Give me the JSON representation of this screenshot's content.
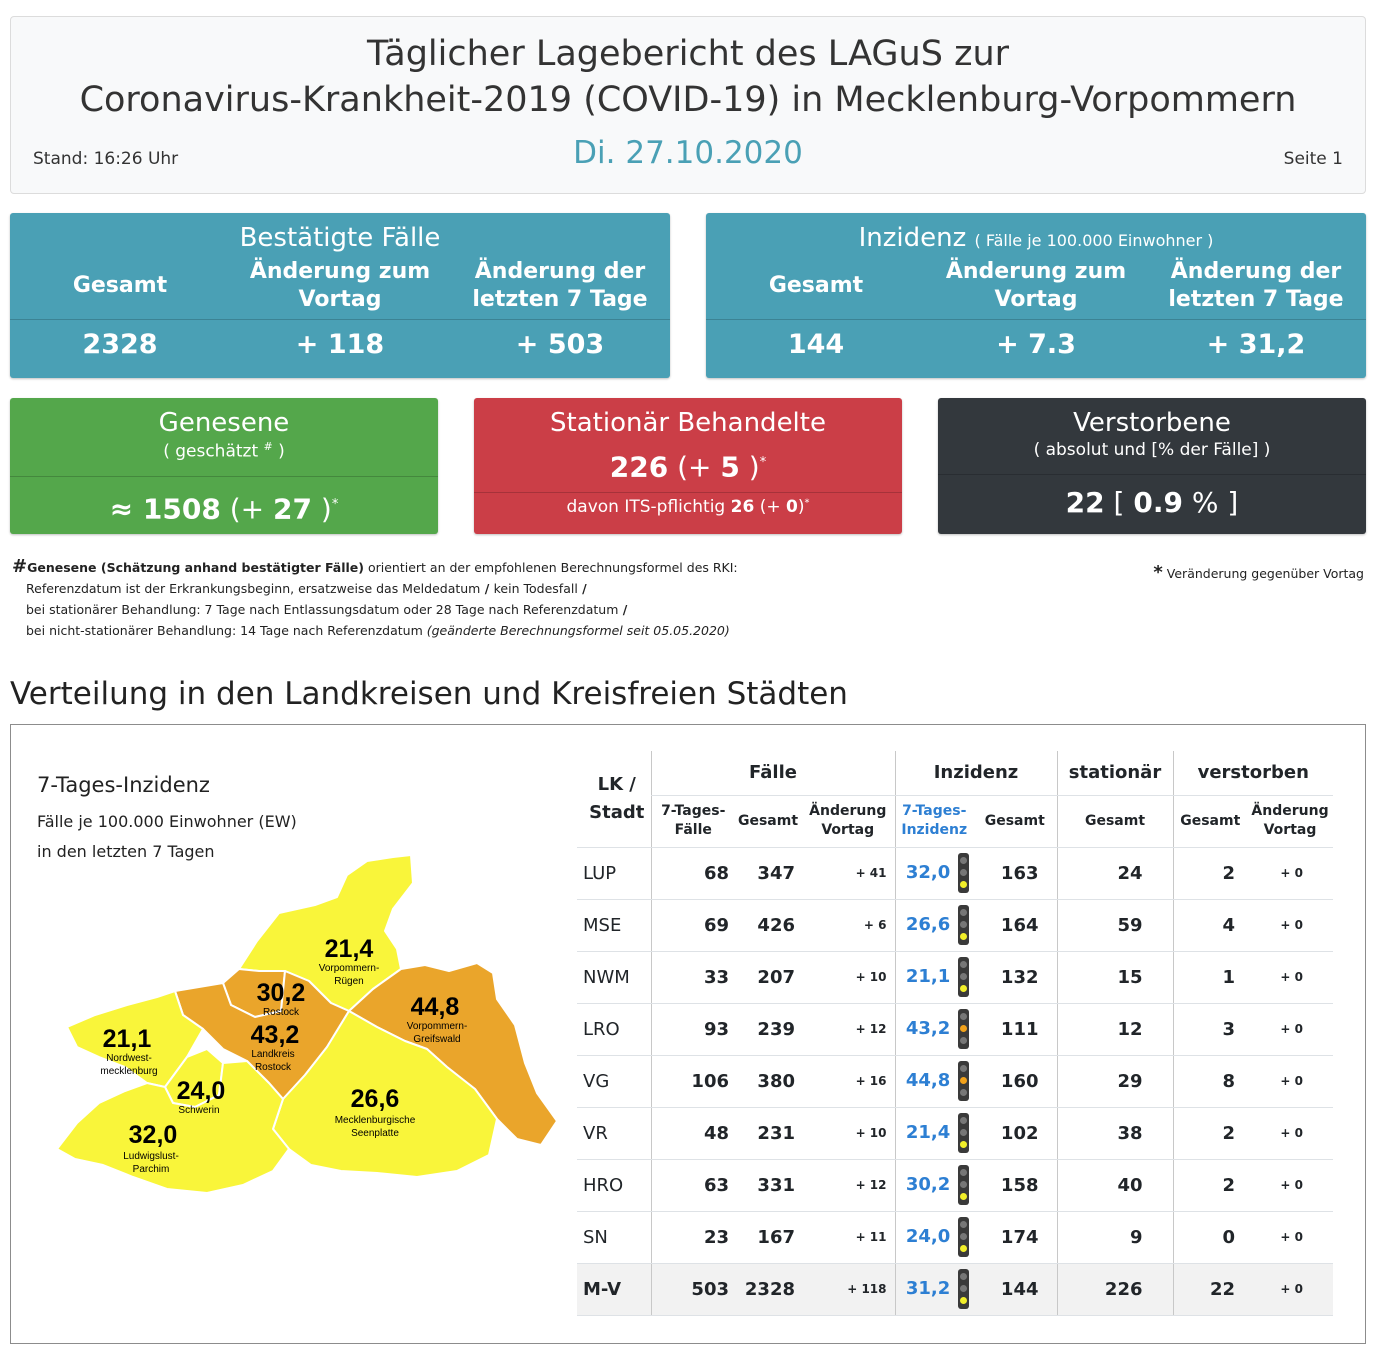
{
  "header": {
    "title_line1": "Täglicher Lagebericht des LAGuS zur",
    "title_line2": "Coronavirus-Krankheit-2019 (COVID-19) in Mecklenburg-Vorpommern",
    "date": "Di. 27.10.2020",
    "stand": "Stand: 16:26 Uhr",
    "seite": "Seite 1"
  },
  "confirmed": {
    "title": "Bestätigte Fälle",
    "col1": "Gesamt",
    "col2": "Änderung zum Vortag",
    "col3": "Änderung der letzten 7 Tage",
    "total": "2328",
    "change_day": "+ 118",
    "change_7d": "+ 503"
  },
  "incidence": {
    "title": "Inzidenz",
    "subtitle": "( Fälle je 100.000 Einwohner )",
    "col1": "Gesamt",
    "col2": "Änderung zum Vortag",
    "col3": "Änderung der letzten 7 Tage",
    "total": "144",
    "change_day": "+ 7.3",
    "change_7d": "+ 31,2"
  },
  "recovered": {
    "title": "Genesene",
    "subtitle_a": "( geschätzt ",
    "subtitle_mark": "#",
    "subtitle_b": " )",
    "approx": "≈ ",
    "value": "1508",
    "change_open": " (+ ",
    "change": "27",
    "change_close": " )",
    "star": "*"
  },
  "hospital": {
    "title": "Stationär Behandelte",
    "value": "226",
    "change_open": " (+ ",
    "change": "5",
    "change_close": " )",
    "star": "*",
    "its_label": "davon ITS-pflichtig ",
    "its_value": "26",
    "its_change_open": " (+ ",
    "its_change": "0",
    "its_change_close": ")",
    "its_star": "*"
  },
  "deaths": {
    "title": "Verstorbene",
    "subtitle": "( absolut und [% der Fälle] )",
    "value": "22",
    "pct_open": " [ ",
    "pct": "0.9",
    "pct_close": " % ]"
  },
  "notes": {
    "hash": "#",
    "bold_lead": "Genesene (Schätzung anhand bestätigter Fälle)",
    "line1_rest": " orientiert an der empfohlenen Berechnungsformel des RKI:",
    "line2": "Referenzdatum ist der Erkrankungsbeginn, ersatzweise das Meldedatum",
    "line2_tail": " kein Todesfall",
    "line3": "bei stationärer Behandlung: 7 Tage nach Entlassungsdatum oder 28 Tage nach Referenzdatum",
    "line4": "bei nicht-stationärer Behandlung: 14 Tage nach Referenzdatum ",
    "line4_italic": "(geänderte Berechnungsformel seit 05.05.2020)",
    "slash": " / ",
    "star_mark": "*",
    "star_text": " Veränderung gegenüber Vortag"
  },
  "section_title": "Verteilung in den Landkreisen und Kreisfreien Städten",
  "map": {
    "title": "7-Tages-Inzidenz",
    "sub1": "Fälle je 100.000 Einwohner (EW)",
    "sub2": "in den letzten 7 Tagen",
    "colors": {
      "yellow": "#f9f53a",
      "orange": "#eaa52b",
      "border": "#ffffff"
    },
    "regions": [
      {
        "value": "21,4",
        "name1": "Vorpommern-",
        "name2": "Rügen"
      },
      {
        "value": "30,2",
        "name1": "Rostock",
        "name2": ""
      },
      {
        "value": "44,8",
        "name1": "Vorpommern-",
        "name2": "Greifswald"
      },
      {
        "value": "43,2",
        "name1": "Landkreis",
        "name2": "Rostock"
      },
      {
        "value": "21,1",
        "name1": "Nordwest-",
        "name2": "mecklenburg"
      },
      {
        "value": "24,0",
        "name1": "Schwerin",
        "name2": ""
      },
      {
        "value": "26,6",
        "name1": "Mecklenburgische",
        "name2": "Seenplatte"
      },
      {
        "value": "32,0",
        "name1": "Ludwigslust-",
        "name2": "Parchim"
      }
    ]
  },
  "table": {
    "headers": {
      "lk": "LK /",
      "lk2": "Stadt",
      "faelle": "Fälle",
      "inzidenz": "Inzidenz",
      "stationaer": "stationär",
      "verstorben": "verstorben",
      "f7_a": "7-Tages-",
      "f7_b": "Fälle",
      "gesamt": "Gesamt",
      "aend_a": "Änderung",
      "aend_b": "Vortag",
      "i7_a": "7-Tages-",
      "i7_b": "Inzidenz"
    },
    "rows": [
      {
        "lk": "LUP",
        "f7": "68",
        "total": "347",
        "chg": "+ 41",
        "i7": "32,0",
        "light": "yellow",
        "itotal": "163",
        "stat": "24",
        "dead": "2",
        "dchg": "+ 0"
      },
      {
        "lk": "MSE",
        "f7": "69",
        "total": "426",
        "chg": "+ 6",
        "i7": "26,6",
        "light": "yellow",
        "itotal": "164",
        "stat": "59",
        "dead": "4",
        "dchg": "+ 0"
      },
      {
        "lk": "NWM",
        "f7": "33",
        "total": "207",
        "chg": "+ 10",
        "i7": "21,1",
        "light": "yellow",
        "itotal": "132",
        "stat": "15",
        "dead": "1",
        "dchg": "+ 0"
      },
      {
        "lk": "LRO",
        "f7": "93",
        "total": "239",
        "chg": "+ 12",
        "i7": "43,2",
        "light": "orange",
        "itotal": "111",
        "stat": "12",
        "dead": "3",
        "dchg": "+ 0"
      },
      {
        "lk": "VG",
        "f7": "106",
        "total": "380",
        "chg": "+ 16",
        "i7": "44,8",
        "light": "orange",
        "itotal": "160",
        "stat": "29",
        "dead": "8",
        "dchg": "+ 0"
      },
      {
        "lk": "VR",
        "f7": "48",
        "total": "231",
        "chg": "+ 10",
        "i7": "21,4",
        "light": "yellow",
        "itotal": "102",
        "stat": "38",
        "dead": "2",
        "dchg": "+ 0"
      },
      {
        "lk": "HRO",
        "f7": "63",
        "total": "331",
        "chg": "+ 12",
        "i7": "30,2",
        "light": "yellow",
        "itotal": "158",
        "stat": "40",
        "dead": "2",
        "dchg": "+ 0"
      },
      {
        "lk": "SN",
        "f7": "23",
        "total": "167",
        "chg": "+ 11",
        "i7": "24,0",
        "light": "yellow",
        "itotal": "174",
        "stat": "9",
        "dead": "0",
        "dchg": "+ 0"
      },
      {
        "lk": "M-V",
        "f7": "503",
        "total": "2328",
        "chg": "+ 118",
        "i7": "31,2",
        "light": "yellow",
        "itotal": "144",
        "stat": "226",
        "dead": "22",
        "dchg": "+ 0"
      }
    ]
  }
}
